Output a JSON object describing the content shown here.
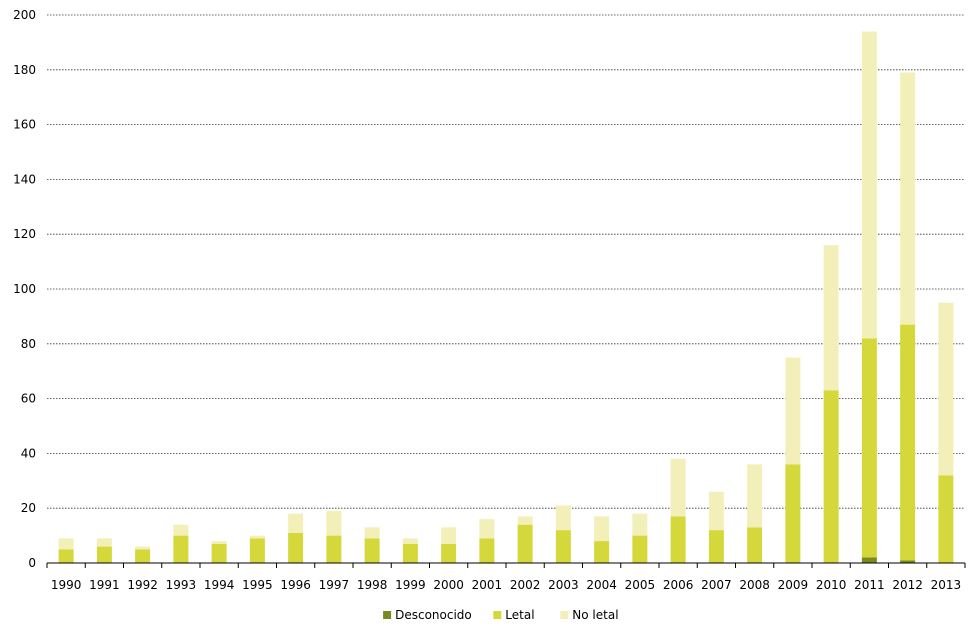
{
  "chart_data": {
    "type": "bar",
    "stacked": true,
    "title": "",
    "xlabel": "",
    "ylabel": "",
    "ylim": [
      0,
      200
    ],
    "yticks": [
      0,
      20,
      40,
      60,
      80,
      100,
      120,
      140,
      160,
      180,
      200
    ],
    "grid": "horizontal-dotted",
    "legend_position": "bottom-center",
    "categories": [
      "1990",
      "1991",
      "1992",
      "1993",
      "1994",
      "1995",
      "1996",
      "1997",
      "1998",
      "1999",
      "2000",
      "2001",
      "2002",
      "2003",
      "2004",
      "2005",
      "2006",
      "2007",
      "2008",
      "2009",
      "2010",
      "2011",
      "2012",
      "2013"
    ],
    "series": [
      {
        "name": "Desconocido",
        "color": "#7a8a1e",
        "values": [
          0,
          0,
          0,
          0,
          0,
          0,
          0,
          0,
          0,
          0,
          0,
          0,
          0,
          0,
          0,
          0,
          0,
          0,
          0,
          0,
          0,
          2,
          1,
          0
        ]
      },
      {
        "name": "Letal",
        "color": "#d5d83a",
        "values": [
          5,
          6,
          5,
          10,
          7,
          9,
          11,
          10,
          9,
          7,
          7,
          9,
          14,
          12,
          8,
          10,
          17,
          12,
          13,
          36,
          63,
          80,
          86,
          32
        ]
      },
      {
        "name": "No letal",
        "color": "#f2f0b8",
        "values": [
          4,
          3,
          1,
          4,
          1,
          1,
          7,
          9,
          4,
          2,
          6,
          7,
          3,
          9,
          9,
          8,
          21,
          14,
          23,
          39,
          53,
          112,
          92,
          63
        ]
      }
    ]
  }
}
